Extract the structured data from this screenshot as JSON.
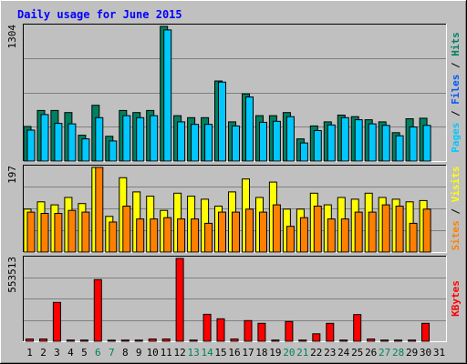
{
  "chart_data": {
    "type": "bar",
    "title": "Daily usage for June 2015",
    "x": [
      "1",
      "2",
      "3",
      "4",
      "5",
      "6",
      "7",
      "8",
      "9",
      "10",
      "11",
      "12",
      "13",
      "14",
      "15",
      "16",
      "17",
      "18",
      "19",
      "20",
      "21",
      "22",
      "23",
      "24",
      "25",
      "26",
      "27",
      "28",
      "29",
      "30",
      "31"
    ],
    "weekend_days": [
      "6",
      "7",
      "13",
      "14",
      "20",
      "21",
      "27",
      "28"
    ],
    "panels": [
      {
        "id": "top",
        "ymax": 1304,
        "ymax_label": "1304",
        "right_label": [
          {
            "text": "Pages",
            "color": "#00c8ff"
          },
          {
            "text": " / ",
            "color": "#000000"
          },
          {
            "text": "Files",
            "color": "#0055ff"
          },
          {
            "text": " / ",
            "color": "#000000"
          },
          {
            "text": "Hits",
            "color": "#008060"
          }
        ],
        "series": [
          {
            "name": "Hits",
            "color": "#008060",
            "values": [
              335,
              490,
              490,
              470,
              250,
              540,
              240,
              490,
              470,
              490,
              1304,
              440,
              420,
              420,
              775,
              380,
              650,
              440,
              440,
              470,
              215,
              340,
              380,
              445,
              430,
              400,
              380,
              275,
              410,
              415,
              0
            ]
          },
          {
            "name": "Files",
            "color": "#00c8ff",
            "values": [
              300,
              450,
              365,
              360,
              215,
              420,
              195,
              440,
              420,
              440,
              1270,
              380,
              355,
              355,
              765,
              340,
              620,
              375,
              385,
              430,
              175,
              295,
              350,
              420,
              400,
              360,
              345,
              245,
              330,
              345,
              0
            ]
          }
        ]
      },
      {
        "id": "middle",
        "ymax": 197,
        "ymax_label": "197",
        "right_label": [
          {
            "text": "Sites",
            "color": "#ff8000"
          },
          {
            "text": " / ",
            "color": "#000000"
          },
          {
            "text": "Visits",
            "color": "#ffff00"
          }
        ],
        "series": [
          {
            "name": "Visits",
            "color": "#ffff00",
            "values": [
              100,
              117,
              110,
              127,
              113,
              197,
              83,
              173,
              140,
              130,
              97,
              137,
              130,
              123,
              107,
              140,
              170,
              127,
              163,
              100,
              100,
              137,
              110,
              127,
              123,
              137,
              127,
              123,
              117,
              120,
              0
            ]
          },
          {
            "name": "Sites",
            "color": "#ff8000",
            "values": [
              93,
              90,
              90,
              97,
              93,
              197,
              70,
              107,
              77,
              77,
              80,
              77,
              77,
              67,
              93,
              93,
              100,
              93,
              110,
              60,
              80,
              107,
              77,
              77,
              93,
              93,
              110,
              107,
              67,
              100,
              0
            ]
          }
        ]
      },
      {
        "id": "bottom",
        "ymax": 553513,
        "ymax_label": "553513",
        "right_label": [
          {
            "text": "KBytes",
            "color": "#ff0000"
          }
        ],
        "series": [
          {
            "name": "KBytes",
            "color": "#ff0000",
            "values": [
              15000,
              15000,
              260000,
              8000,
              8000,
              412000,
              7000,
              8000,
              8000,
              15000,
              15000,
              553513,
              8000,
              180000,
              150000,
              15000,
              138000,
              120000,
              8000,
              132000,
              8000,
              50000,
              120000,
              8000,
              178000,
              15000,
              8000,
              8000,
              8000,
              120000,
              0
            ]
          }
        ]
      }
    ],
    "colors": {
      "background": "#c0c0c0",
      "plot_background": "#c0c0c0",
      "gridline": "#808080",
      "title": "#0000ff",
      "weekday_label": "#000000",
      "weekend_label": "#008060",
      "bar_outline": "#000000"
    },
    "grid": true
  }
}
